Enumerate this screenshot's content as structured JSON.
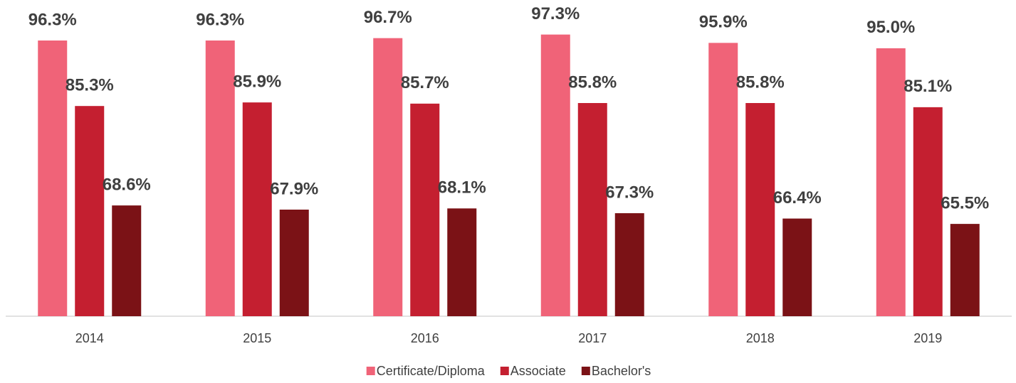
{
  "chart_data": {
    "type": "bar",
    "categories": [
      "2014",
      "2015",
      "2016",
      "2017",
      "2018",
      "2019"
    ],
    "series": [
      {
        "name": "Certificate/Diploma",
        "color": "#f06378",
        "values": [
          96.3,
          96.3,
          96.7,
          97.3,
          95.9,
          95.0
        ],
        "value_labels": [
          "96.3%",
          "96.3%",
          "96.7%",
          "97.3%",
          "95.9%",
          "95.0%"
        ]
      },
      {
        "name": "Associate",
        "color": "#c41f30",
        "values": [
          85.3,
          85.9,
          85.7,
          85.8,
          85.8,
          85.1
        ],
        "value_labels": [
          "85.3%",
          "85.9%",
          "85.7%",
          "85.8%",
          "85.8%",
          "85.1%"
        ]
      },
      {
        "name": "Bachelor's",
        "color": "#7b1216",
        "values": [
          68.6,
          67.9,
          68.1,
          67.3,
          66.4,
          65.5
        ],
        "value_labels": [
          "68.6%",
          "67.9%",
          "68.1%",
          "67.3%",
          "66.4%",
          "65.5%"
        ]
      }
    ],
    "ylim": [
      50,
      100
    ],
    "legend": "bottom"
  }
}
